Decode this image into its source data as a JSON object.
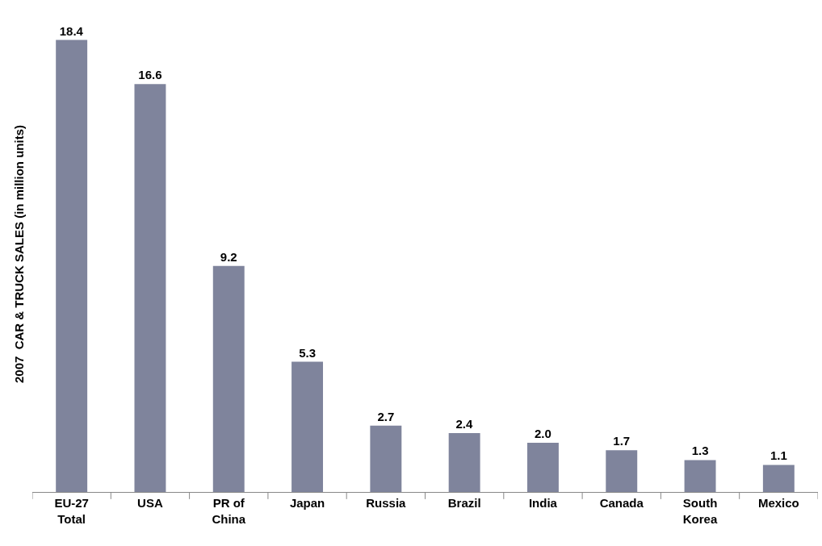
{
  "chart_data": {
    "type": "bar",
    "ylabel": "2007  CAR & TRUCK SALES (in million units)",
    "categories": [
      "EU-27\nTotal",
      "USA",
      "PR of\nChina",
      "Japan",
      "Russia",
      "Brazil",
      "India",
      "Canada",
      "South\nKorea",
      "Mexico"
    ],
    "values": [
      18.4,
      16.6,
      9.2,
      5.3,
      2.7,
      2.4,
      2.0,
      1.7,
      1.3,
      1.1
    ],
    "value_labels": [
      "18.4",
      "16.6",
      "9.2",
      "5.3",
      "2.7",
      "2.4",
      "2.0",
      "1.7",
      "1.3",
      "1.1"
    ],
    "color": "#7f849c",
    "tick_labels": "x"
  }
}
